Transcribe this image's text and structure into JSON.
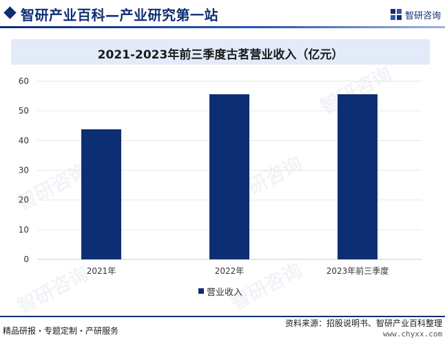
{
  "header": {
    "title": "智研产业百科—产业研究第一站",
    "brand_name": "智研咨询"
  },
  "watermark": {
    "text": "智研咨询"
  },
  "chart_data": {
    "type": "bar",
    "title": "2021-2023年前三季度古茗营业收入（亿元）",
    "categories": [
      "2021年",
      "2022年",
      "2023年前三季度"
    ],
    "series": [
      {
        "name": "营业收入",
        "values": [
          43.8,
          55.6,
          55.6
        ],
        "color": "#0d2e73"
      }
    ],
    "ylim": [
      0,
      60
    ],
    "yticks": [
      0,
      10,
      20,
      30,
      40,
      50,
      60
    ],
    "grid": true,
    "legend": "bottom-center",
    "xlabel": "",
    "ylabel": ""
  },
  "footer": {
    "left": "精品研报・专题定制・产研服务",
    "source": "资料来源：招股说明书、智研产业百科整理",
    "url": "www.chyxx.com"
  }
}
